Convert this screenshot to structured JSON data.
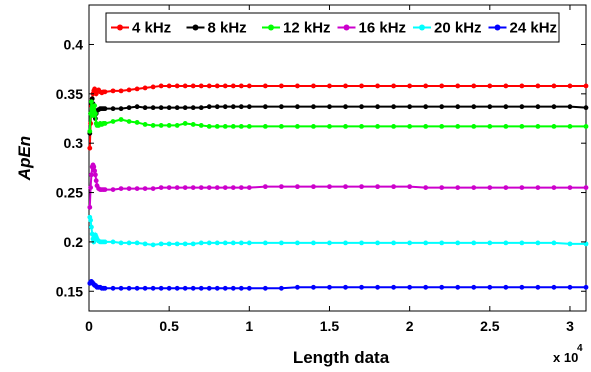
{
  "chart_data": {
    "type": "line",
    "title": "",
    "xlabel": "Length data",
    "ylabel": "ApEn",
    "x_multiplier": "x 10",
    "x_multiplier_exp": "4",
    "xlim": [
      0,
      31000
    ],
    "ylim": [
      0.13,
      0.44
    ],
    "xticks": [
      0,
      5000,
      10000,
      15000,
      20000,
      25000,
      30000
    ],
    "xtick_labels": [
      "0",
      "0.5",
      "1",
      "1.5",
      "2",
      "2.5",
      "3"
    ],
    "yticks": [
      0.15,
      0.2,
      0.25,
      0.3,
      0.35,
      0.4
    ],
    "ytick_labels": [
      "0.15",
      "0.2",
      "0.25",
      "0.3",
      "0.35",
      "0.4"
    ],
    "grid": false,
    "legend_position": "top",
    "x": [
      50,
      100,
      150,
      200,
      250,
      300,
      350,
      400,
      450,
      500,
      600,
      700,
      800,
      900,
      1000,
      1500,
      2000,
      2500,
      3000,
      3500,
      4000,
      4500,
      5000,
      5500,
      6000,
      6500,
      7000,
      7500,
      8000,
      8500,
      9000,
      9500,
      10000,
      11000,
      12000,
      13000,
      14000,
      15000,
      16000,
      17000,
      18000,
      19000,
      20000,
      21000,
      22000,
      23000,
      24000,
      25000,
      26000,
      27000,
      28000,
      29000,
      30000,
      31000
    ],
    "series": [
      {
        "name": "4 kHz",
        "color": "#ff0000",
        "values": [
          0.295,
          0.32,
          0.338,
          0.345,
          0.35,
          0.353,
          0.355,
          0.353,
          0.35,
          0.352,
          0.354,
          0.352,
          0.351,
          0.352,
          0.352,
          0.353,
          0.353,
          0.354,
          0.355,
          0.356,
          0.357,
          0.358,
          0.358,
          0.358,
          0.358,
          0.358,
          0.358,
          0.358,
          0.358,
          0.358,
          0.358,
          0.358,
          0.358,
          0.358,
          0.358,
          0.358,
          0.358,
          0.358,
          0.358,
          0.358,
          0.358,
          0.358,
          0.358,
          0.358,
          0.358,
          0.358,
          0.358,
          0.358,
          0.358,
          0.358,
          0.358,
          0.358,
          0.358,
          0.358
        ]
      },
      {
        "name": "8 kHz",
        "color": "#000000",
        "values": [
          0.31,
          0.33,
          0.34,
          0.345,
          0.34,
          0.334,
          0.33,
          0.325,
          0.33,
          0.333,
          0.334,
          0.335,
          0.335,
          0.335,
          0.335,
          0.335,
          0.335,
          0.336,
          0.337,
          0.336,
          0.336,
          0.336,
          0.336,
          0.336,
          0.336,
          0.336,
          0.336,
          0.337,
          0.337,
          0.337,
          0.337,
          0.337,
          0.337,
          0.337,
          0.337,
          0.337,
          0.337,
          0.337,
          0.337,
          0.337,
          0.337,
          0.337,
          0.337,
          0.337,
          0.337,
          0.337,
          0.337,
          0.337,
          0.337,
          0.337,
          0.337,
          0.337,
          0.337,
          0.336
        ]
      },
      {
        "name": "12 kHz",
        "color": "#00ff00",
        "values": [
          0.312,
          0.33,
          0.342,
          0.335,
          0.328,
          0.333,
          0.338,
          0.33,
          0.32,
          0.318,
          0.318,
          0.32,
          0.319,
          0.32,
          0.32,
          0.322,
          0.324,
          0.322,
          0.321,
          0.319,
          0.318,
          0.318,
          0.318,
          0.318,
          0.32,
          0.319,
          0.318,
          0.317,
          0.317,
          0.317,
          0.317,
          0.317,
          0.317,
          0.317,
          0.317,
          0.317,
          0.317,
          0.317,
          0.317,
          0.317,
          0.317,
          0.317,
          0.317,
          0.317,
          0.317,
          0.317,
          0.317,
          0.317,
          0.317,
          0.317,
          0.317,
          0.317,
          0.317,
          0.317
        ]
      },
      {
        "name": "16 kHz",
        "color": "#cc00cc",
        "values": [
          0.235,
          0.255,
          0.268,
          0.276,
          0.278,
          0.276,
          0.272,
          0.268,
          0.262,
          0.257,
          0.254,
          0.253,
          0.253,
          0.253,
          0.253,
          0.253,
          0.254,
          0.254,
          0.254,
          0.254,
          0.254,
          0.255,
          0.255,
          0.255,
          0.255,
          0.255,
          0.255,
          0.255,
          0.255,
          0.255,
          0.255,
          0.255,
          0.255,
          0.256,
          0.256,
          0.256,
          0.256,
          0.256,
          0.256,
          0.256,
          0.256,
          0.256,
          0.256,
          0.255,
          0.255,
          0.255,
          0.255,
          0.255,
          0.255,
          0.255,
          0.255,
          0.255,
          0.255,
          0.255
        ]
      },
      {
        "name": "20 kHz",
        "color": "#00ffff",
        "values": [
          0.225,
          0.222,
          0.215,
          0.208,
          0.203,
          0.2,
          0.202,
          0.207,
          0.205,
          0.203,
          0.201,
          0.2,
          0.2,
          0.2,
          0.2,
          0.2,
          0.199,
          0.199,
          0.199,
          0.198,
          0.197,
          0.198,
          0.198,
          0.198,
          0.198,
          0.198,
          0.199,
          0.199,
          0.199,
          0.199,
          0.199,
          0.199,
          0.199,
          0.199,
          0.199,
          0.199,
          0.199,
          0.199,
          0.199,
          0.199,
          0.199,
          0.199,
          0.199,
          0.199,
          0.199,
          0.199,
          0.199,
          0.199,
          0.199,
          0.199,
          0.199,
          0.199,
          0.198,
          0.198
        ]
      },
      {
        "name": "24 kHz",
        "color": "#0000ff",
        "values": [
          0.158,
          0.159,
          0.16,
          0.159,
          0.158,
          0.157,
          0.156,
          0.156,
          0.155,
          0.154,
          0.154,
          0.154,
          0.153,
          0.153,
          0.153,
          0.153,
          0.153,
          0.153,
          0.153,
          0.153,
          0.153,
          0.153,
          0.153,
          0.153,
          0.153,
          0.153,
          0.153,
          0.153,
          0.153,
          0.153,
          0.153,
          0.153,
          0.153,
          0.153,
          0.153,
          0.154,
          0.154,
          0.154,
          0.154,
          0.154,
          0.154,
          0.154,
          0.154,
          0.154,
          0.154,
          0.154,
          0.154,
          0.154,
          0.154,
          0.154,
          0.154,
          0.154,
          0.154,
          0.154
        ]
      }
    ]
  }
}
